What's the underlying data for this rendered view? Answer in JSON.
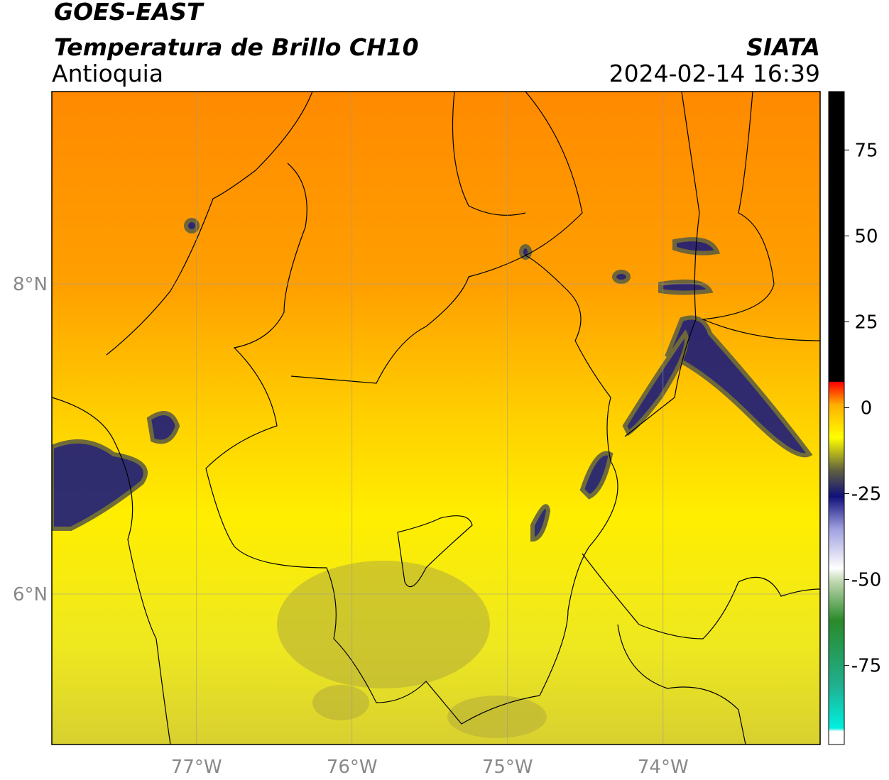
{
  "header": {
    "title": "GOES-EAST",
    "subtitle": "Temperatura de Brillo CH10",
    "region": "Antioquia",
    "source": "SIATA",
    "datetime": "2024-02-14 16:39"
  },
  "map": {
    "xlim": [
      -77.93,
      -72.99
    ],
    "ylim": [
      5.03,
      9.24
    ],
    "xticks": [
      {
        "value": -77,
        "label": "77°W"
      },
      {
        "value": -76,
        "label": "76°W"
      },
      {
        "value": -75,
        "label": "75°W"
      },
      {
        "value": -74,
        "label": "74°W"
      }
    ],
    "yticks": [
      {
        "value": 8,
        "label": "8°N"
      },
      {
        "value": 6,
        "label": "6°N"
      }
    ],
    "grid": true
  },
  "colorbar": {
    "lim": [
      -98,
      92
    ],
    "ticks": [
      75,
      50,
      25,
      0,
      -25,
      -50,
      -75
    ]
  }
}
